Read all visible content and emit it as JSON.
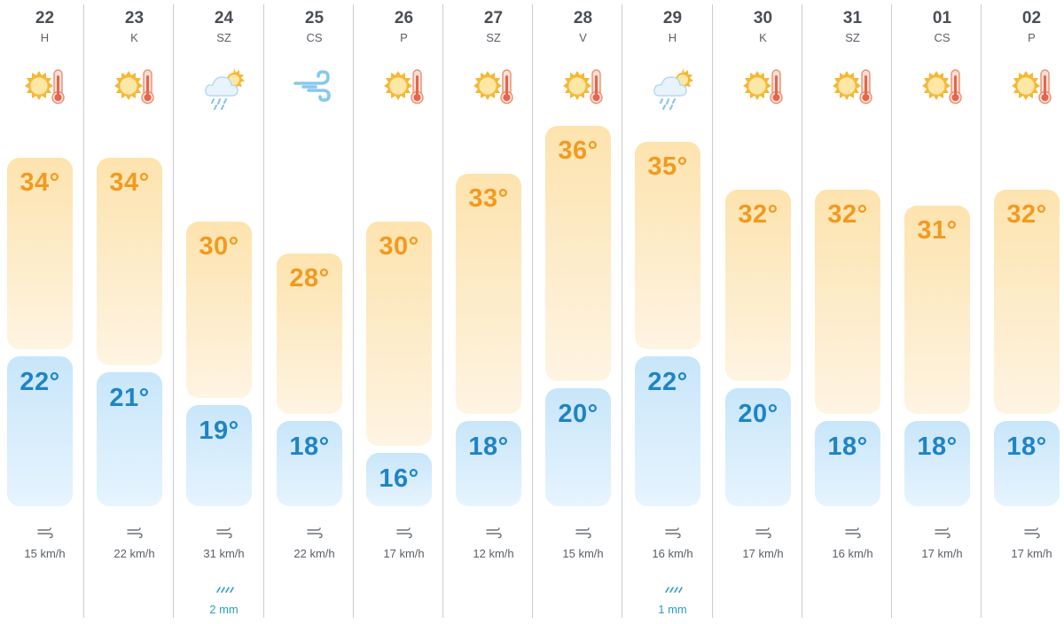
{
  "colors": {
    "high_text": "#f29a1f",
    "low_text": "#1e84c6",
    "high_box": "#fde3ae",
    "low_box": "#c8e6fa",
    "rain_text": "#2a9ec0",
    "divider": "#c9ccd1"
  },
  "units": {
    "temperature": "°",
    "wind": "km/h",
    "rain": "mm"
  },
  "days": [
    {
      "date": "22",
      "weekday": "H",
      "icon": "sun-thermometer-icon",
      "high": "34°",
      "low": "22°",
      "wind": "15 km/h",
      "rain": null
    },
    {
      "date": "23",
      "weekday": "K",
      "icon": "sun-thermometer-icon",
      "high": "34°",
      "low": "21°",
      "wind": "22 km/h",
      "rain": null
    },
    {
      "date": "24",
      "weekday": "SZ",
      "icon": "rain-cloud-sun-icon",
      "high": "30°",
      "low": "19°",
      "wind": "31 km/h",
      "rain": "2 mm"
    },
    {
      "date": "25",
      "weekday": "CS",
      "icon": "wind-icon",
      "high": "28°",
      "low": "18°",
      "wind": "22 km/h",
      "rain": null
    },
    {
      "date": "26",
      "weekday": "P",
      "icon": "sun-thermometer-icon",
      "high": "30°",
      "low": "16°",
      "wind": "17 km/h",
      "rain": null
    },
    {
      "date": "27",
      "weekday": "SZ",
      "icon": "sun-thermometer-icon",
      "high": "33°",
      "low": "18°",
      "wind": "12 km/h",
      "rain": null
    },
    {
      "date": "28",
      "weekday": "V",
      "icon": "sun-thermometer-icon",
      "high": "36°",
      "low": "20°",
      "wind": "15 km/h",
      "rain": null
    },
    {
      "date": "29",
      "weekday": "H",
      "icon": "rain-cloud-sun-icon",
      "high": "35°",
      "low": "22°",
      "wind": "16 km/h",
      "rain": "1 mm"
    },
    {
      "date": "30",
      "weekday": "K",
      "icon": "sun-thermometer-icon",
      "high": "32°",
      "low": "20°",
      "wind": "17 km/h",
      "rain": null
    },
    {
      "date": "31",
      "weekday": "SZ",
      "icon": "sun-thermometer-icon",
      "high": "32°",
      "low": "18°",
      "wind": "16 km/h",
      "rain": null
    },
    {
      "date": "01",
      "weekday": "CS",
      "icon": "sun-thermometer-icon",
      "high": "31°",
      "low": "18°",
      "wind": "17 km/h",
      "rain": null
    },
    {
      "date": "02",
      "weekday": "P",
      "icon": "sun-thermometer-icon",
      "high": "32°",
      "low": "18°",
      "wind": "17 km/h",
      "rain": null
    }
  ]
}
